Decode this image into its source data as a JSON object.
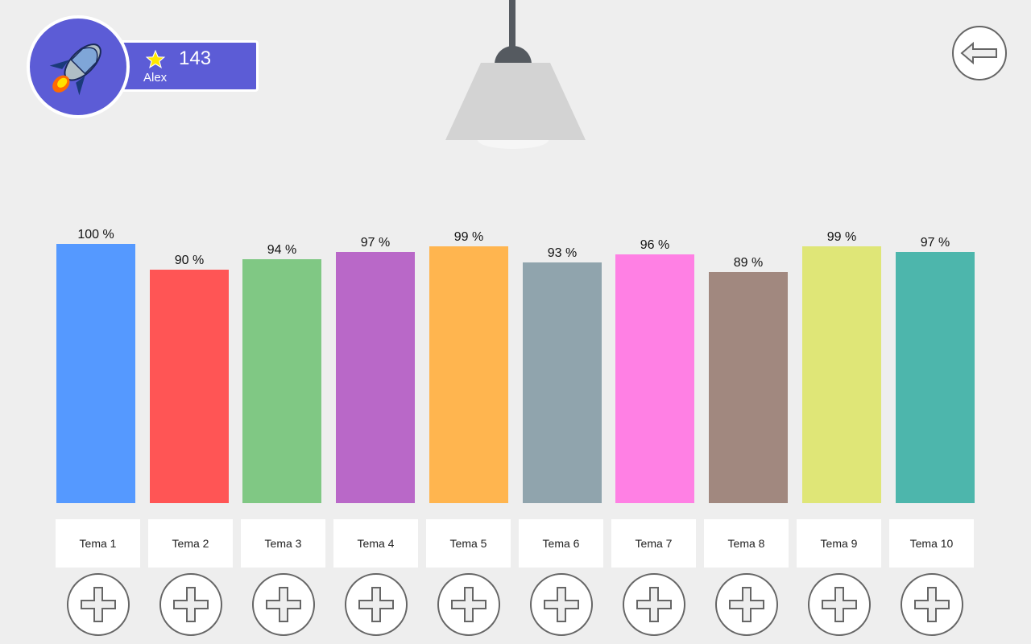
{
  "user": {
    "name": "Alex",
    "score": "143",
    "avatar_icon": "rocket-icon",
    "score_icon": "star-icon",
    "accent": "#5c5cd6"
  },
  "back_icon": "arrow-left-icon",
  "chart_data": {
    "type": "bar",
    "categories": [
      "Tema 1",
      "Tema 2",
      "Tema 3",
      "Tema 4",
      "Tema 5",
      "Tema 6",
      "Tema 7",
      "Tema 8",
      "Tema 9",
      "Tema 10"
    ],
    "values": [
      100,
      90,
      94,
      97,
      99,
      93,
      96,
      89,
      99,
      97
    ],
    "value_labels": [
      "100 %",
      "90 %",
      "94 %",
      "97 %",
      "99 %",
      "93 %",
      "96 %",
      "89 %",
      "99 %",
      "97 %"
    ],
    "colors": [
      "#5599ff",
      "#ff5555",
      "#80c884",
      "#b968c8",
      "#ffb54f",
      "#90a4ad",
      "#ff80e4",
      "#a1887f",
      "#dfe677",
      "#4db6ac"
    ],
    "ylim": [
      0,
      100
    ]
  },
  "add_icon": "plus-icon"
}
